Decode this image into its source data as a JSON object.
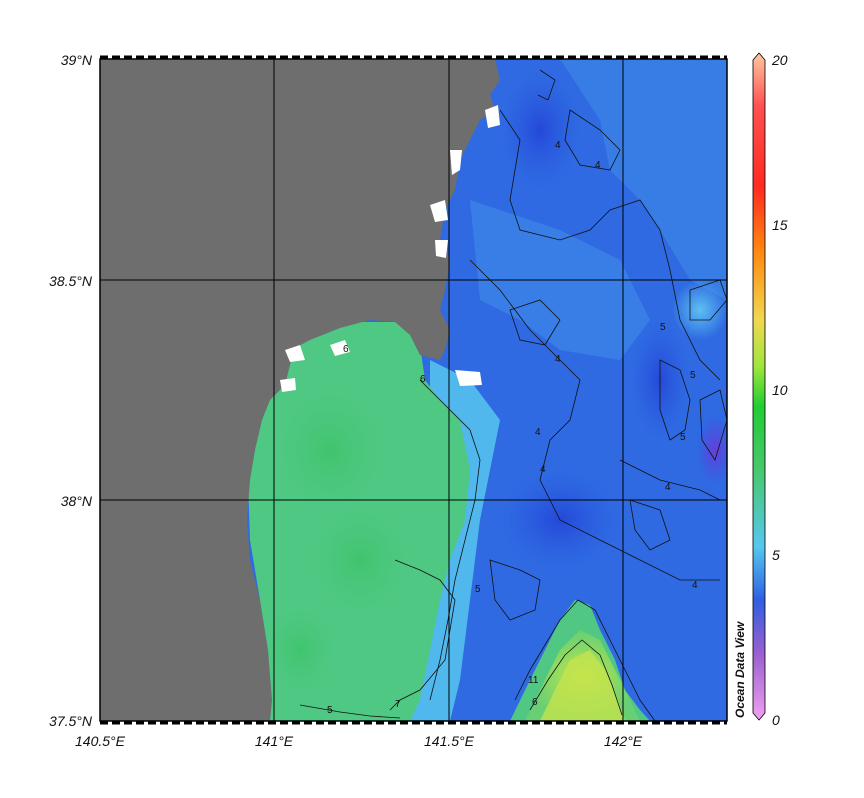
{
  "map": {
    "lat_labels": [
      "39°N",
      "38.5°N",
      "38°N",
      "37.5°N"
    ],
    "lon_labels": [
      "140.5°E",
      "141°E",
      "141.5°E",
      "142°E"
    ],
    "land_color": "#6e6e6e",
    "grid_color": "#000000",
    "contour_labels": [
      "4",
      "4",
      "4",
      "4",
      "4",
      "4",
      "4",
      "5",
      "5",
      "5",
      "5",
      "6",
      "6",
      "6",
      "7",
      "11",
      "5"
    ]
  },
  "colorbar": {
    "tick_labels": [
      "20",
      "15",
      "10",
      "5",
      "0"
    ],
    "watermark": "Ocean Data View",
    "colors": [
      "#ffc8a0",
      "#ff2a20",
      "#ff8a10",
      "#f0d850",
      "#9fe63c",
      "#22cc33",
      "#48c870",
      "#55c8f0",
      "#2f5fe0",
      "#9b5fd0",
      "#f0a0f0"
    ]
  }
}
